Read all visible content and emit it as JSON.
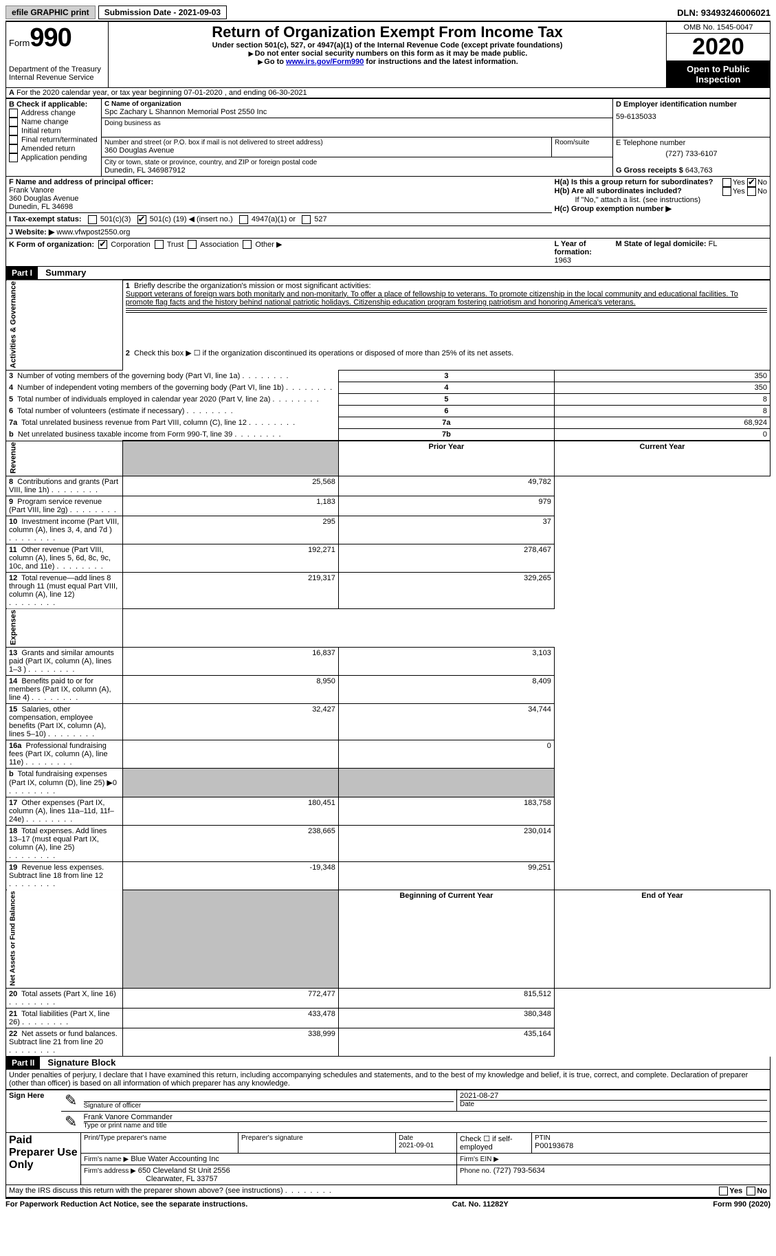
{
  "top": {
    "efile": "efile GRAPHIC print",
    "submission": "Submission Date - 2021-09-03",
    "dln": "DLN: 93493246006021"
  },
  "header": {
    "form_label": "Form",
    "form_number": "990",
    "dept1": "Department of the Treasury",
    "dept2": "Internal Revenue Service",
    "title": "Return of Organization Exempt From Income Tax",
    "subtitle": "Under section 501(c), 527, or 4947(a)(1) of the Internal Revenue Code (except private foundations)",
    "note1": "Do not enter social security numbers on this form as it may be made public.",
    "note2_pre": "Go to ",
    "note2_link": "www.irs.gov/Form990",
    "note2_post": " for instructions and the latest information.",
    "omb": "OMB No. 1545-0047",
    "year": "2020",
    "inspection": "Open to Public Inspection"
  },
  "periodA": "For the 2020 calendar year, or tax year beginning 07-01-2020   , and ending 06-30-2021",
  "boxB": {
    "label": "B Check if applicable:",
    "opts": [
      "Address change",
      "Name change",
      "Initial return",
      "Final return/terminated",
      "Amended return",
      "Application pending"
    ]
  },
  "boxC": {
    "label": "C Name of organization",
    "name": "Spc Zachary L Shannon Memorial Post 2550 Inc",
    "dba_label": "Doing business as",
    "street_label": "Number and street (or P.O. box if mail is not delivered to street address)",
    "street": "360 Douglas Avenue",
    "room_label": "Room/suite",
    "city_label": "City or town, state or province, country, and ZIP or foreign postal code",
    "city": "Dunedin, FL  346987912"
  },
  "boxD": {
    "label": "D Employer identification number",
    "value": "59-6135033"
  },
  "boxE": {
    "label": "E Telephone number",
    "value": "(727) 733-6107"
  },
  "boxG": {
    "label": "G Gross receipts $",
    "value": "643,763"
  },
  "boxF": {
    "label": "F Name and address of principal officer:",
    "l1": "Frank Vanore",
    "l2": "360 Douglas Avenue",
    "l3": "Dunedin, FL  34698"
  },
  "boxH": {
    "ha": "H(a)  Is this a group return for subordinates?",
    "hb": "H(b)  Are all subordinates included?",
    "hnote": "If \"No,\" attach a list. (see instructions)",
    "hc": "H(c)  Group exemption number ▶",
    "yes": "Yes",
    "no": "No"
  },
  "boxI": {
    "label": "I  Tax-exempt status:",
    "o1": "501(c)(3)",
    "o2a": "501(c) (",
    "o2n": "19",
    "o2b": ") ◀ (insert no.)",
    "o3": "4947(a)(1) or",
    "o4": "527"
  },
  "boxJ": {
    "label": "J  Website: ▶",
    "value": "www.vfwpost2550.org"
  },
  "boxK": {
    "label": "K Form of organization:",
    "o1": "Corporation",
    "o2": "Trust",
    "o3": "Association",
    "o4": "Other ▶"
  },
  "boxL": {
    "label": "L Year of formation:",
    "value": "1963"
  },
  "boxM": {
    "label": "M State of legal domicile:",
    "value": "FL"
  },
  "part1": {
    "header": "Part I",
    "title": "Summary"
  },
  "summary": {
    "l1": "Briefly describe the organization's mission or most significant activities:",
    "mission": "Support veterans of foreign wars both monitarly and non-monitarly. To offer a place of fellowship to veterans. To promote citizenship in the local community and educational facilities. To promote flag facts and the history behind national patriotic holidays. Citizenship education program fostering patriotism and honoring America's veterans.",
    "l2": "Check this box ▶ ☐  if the organization discontinued its operations or disposed of more than 25% of its net assets.",
    "rows_gov": [
      {
        "n": "3",
        "t": "Number of voting members of the governing body (Part VI, line 1a)",
        "k": "3",
        "v": "350"
      },
      {
        "n": "4",
        "t": "Number of independent voting members of the governing body (Part VI, line 1b)",
        "k": "4",
        "v": "350"
      },
      {
        "n": "5",
        "t": "Total number of individuals employed in calendar year 2020 (Part V, line 2a)",
        "k": "5",
        "v": "8"
      },
      {
        "n": "6",
        "t": "Total number of volunteers (estimate if necessary)",
        "k": "6",
        "v": "8"
      },
      {
        "n": "7a",
        "t": "Total unrelated business revenue from Part VIII, column (C), line 12",
        "k": "7a",
        "v": "68,924"
      },
      {
        "n": "b",
        "t": "Net unrelated business taxable income from Form 990-T, line 39",
        "k": "7b",
        "v": "0"
      }
    ],
    "col_prior": "Prior Year",
    "col_current": "Current Year",
    "revenue": [
      {
        "n": "8",
        "t": "Contributions and grants (Part VIII, line 1h)",
        "p": "25,568",
        "c": "49,782"
      },
      {
        "n": "9",
        "t": "Program service revenue (Part VIII, line 2g)",
        "p": "1,183",
        "c": "979"
      },
      {
        "n": "10",
        "t": "Investment income (Part VIII, column (A), lines 3, 4, and 7d )",
        "p": "295",
        "c": "37"
      },
      {
        "n": "11",
        "t": "Other revenue (Part VIII, column (A), lines 5, 6d, 8c, 9c, 10c, and 11e)",
        "p": "192,271",
        "c": "278,467"
      },
      {
        "n": "12",
        "t": "Total revenue—add lines 8 through 11 (must equal Part VIII, column (A), line 12)",
        "p": "219,317",
        "c": "329,265"
      }
    ],
    "expenses": [
      {
        "n": "13",
        "t": "Grants and similar amounts paid (Part IX, column (A), lines 1–3 )",
        "p": "16,837",
        "c": "3,103"
      },
      {
        "n": "14",
        "t": "Benefits paid to or for members (Part IX, column (A), line 4)",
        "p": "8,950",
        "c": "8,409"
      },
      {
        "n": "15",
        "t": "Salaries, other compensation, employee benefits (Part IX, column (A), lines 5–10)",
        "p": "32,427",
        "c": "34,744"
      },
      {
        "n": "16a",
        "t": "Professional fundraising fees (Part IX, column (A), line 11e)",
        "p": "",
        "c": "0"
      },
      {
        "n": "b",
        "t": "Total fundraising expenses (Part IX, column (D), line 25) ▶0",
        "p": "shaded",
        "c": "shaded"
      },
      {
        "n": "17",
        "t": "Other expenses (Part IX, column (A), lines 11a–11d, 11f–24e)",
        "p": "180,451",
        "c": "183,758"
      },
      {
        "n": "18",
        "t": "Total expenses. Add lines 13–17 (must equal Part IX, column (A), line 25)",
        "p": "238,665",
        "c": "230,014"
      },
      {
        "n": "19",
        "t": "Revenue less expenses. Subtract line 18 from line 12",
        "p": "-19,348",
        "c": "99,251"
      }
    ],
    "col_beg": "Beginning of Current Year",
    "col_end": "End of Year",
    "netassets": [
      {
        "n": "20",
        "t": "Total assets (Part X, line 16)",
        "p": "772,477",
        "c": "815,512"
      },
      {
        "n": "21",
        "t": "Total liabilities (Part X, line 26)",
        "p": "433,478",
        "c": "380,348"
      },
      {
        "n": "22",
        "t": "Net assets or fund balances. Subtract line 21 from line 20",
        "p": "338,999",
        "c": "435,164"
      }
    ]
  },
  "vert": {
    "gov": "Activities & Governance",
    "rev": "Revenue",
    "exp": "Expenses",
    "net": "Net Assets or Fund Balances"
  },
  "part2": {
    "header": "Part II",
    "title": "Signature Block"
  },
  "sig": {
    "penalty": "Under penalties of perjury, I declare that I have examined this return, including accompanying schedules and statements, and to the best of my knowledge and belief, it is true, correct, and complete. Declaration of preparer (other than officer) is based on all information of which preparer has any knowledge.",
    "sign_here": "Sign Here",
    "sig_officer": "Signature of officer",
    "date_label": "Date",
    "sig_date": "2021-08-27",
    "name_title": "Frank Vanore Commander",
    "name_label": "Type or print name and title",
    "paid": "Paid Preparer Use Only",
    "prep_name_label": "Print/Type preparer's name",
    "prep_sig_label": "Preparer's signature",
    "prep_date_label": "Date",
    "prep_date": "2021-09-01",
    "check_self": "Check ☐ if self-employed",
    "ptin_label": "PTIN",
    "ptin": "P00193678",
    "firm_name_label": "Firm's name   ▶",
    "firm_name": "Blue Water Accounting Inc",
    "firm_ein_label": "Firm's EIN ▶",
    "firm_addr_label": "Firm's address ▶",
    "firm_addr1": "650 Cleveland St Unit 2556",
    "firm_addr2": "Clearwater, FL  33757",
    "phone_label": "Phone no.",
    "phone": "(727) 793-5634",
    "discuss": "May the IRS discuss this return with the preparer shown above? (see instructions)"
  },
  "footer": {
    "l": "For Paperwork Reduction Act Notice, see the separate instructions.",
    "c": "Cat. No. 11282Y",
    "r": "Form 990 (2020)"
  }
}
